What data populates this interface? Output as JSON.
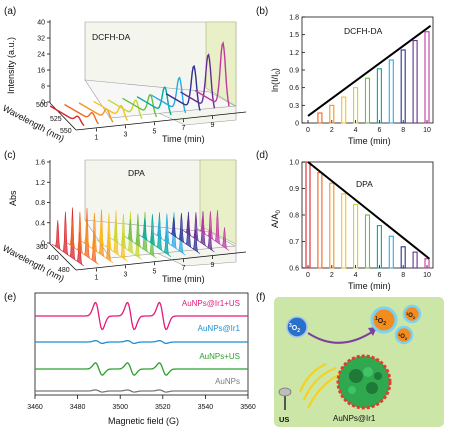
{
  "panel_labels": {
    "a": "(a)",
    "b": "(b)",
    "c": "(c)",
    "d": "(d)",
    "e": "(e)",
    "f": "(f)"
  },
  "colors": {
    "time_series": [
      "#d7262d",
      "#f26522",
      "#f7941d",
      "#f7c21b",
      "#c6d82f",
      "#6abd45",
      "#00a99d",
      "#29abe2",
      "#2e3192",
      "#662d91",
      "#c03aa0"
    ]
  },
  "chart_data": [
    {
      "panel": "a",
      "type": "line",
      "title": "DCFH-DA",
      "ylabel": "Intensity (a.u.)",
      "xlabel": "Time (min)",
      "zlabel": "Wavelength (nm)",
      "ylim": [
        0,
        40
      ],
      "yticks": [
        "0",
        "8",
        "16",
        "24",
        "32",
        "40"
      ],
      "time_ticks": [
        "1",
        "3",
        "5",
        "7",
        "9"
      ],
      "wavelength_ticks": [
        "500",
        "525",
        "550"
      ],
      "series_peak_intensity": [
        3,
        4,
        5,
        6,
        8,
        10,
        13,
        17,
        22,
        27,
        32
      ]
    },
    {
      "panel": "b",
      "type": "bar",
      "title": "DCFH-DA",
      "ylabel": "ln(I/I0)",
      "ylabel_main": "ln(I/I",
      "ylabel_sub": "0",
      "ylabel_end": ")",
      "xlabel": "Time (min)",
      "ylim": [
        0,
        1.8
      ],
      "yticks": [
        "0",
        "0.3",
        "0.6",
        "0.9",
        "1.2",
        "1.5",
        "1.8"
      ],
      "xticks": [
        "0",
        "2",
        "4",
        "6",
        "8",
        "10"
      ],
      "x": [
        0,
        1,
        2,
        3,
        4,
        5,
        6,
        7,
        8,
        9,
        10
      ],
      "values": [
        0.0,
        0.17,
        0.3,
        0.44,
        0.6,
        0.76,
        0.92,
        1.07,
        1.24,
        1.4,
        1.55
      ],
      "fit_line": {
        "x": [
          0,
          10.3
        ],
        "y": [
          0.12,
          1.65
        ]
      }
    },
    {
      "panel": "c",
      "type": "line",
      "title": "DPA",
      "ylabel": "Abs",
      "xlabel": "Time (min)",
      "zlabel": "Wavelength (nm)",
      "ylim": [
        0,
        1.6
      ],
      "yticks": [
        "0",
        "0.4",
        "0.8",
        "1.2",
        "1.6"
      ],
      "time_ticks": [
        "1",
        "3",
        "5",
        "7",
        "9"
      ],
      "wavelength_ticks": [
        "360",
        "400",
        "480"
      ],
      "series_peak_abs": [
        1.0,
        0.96,
        0.9,
        0.85,
        0.8,
        0.76,
        0.72,
        0.69,
        0.67,
        0.65,
        0.64
      ]
    },
    {
      "panel": "d",
      "type": "bar",
      "title": "DPA",
      "ylabel": "A/A0",
      "ylabel_main": "A/A",
      "ylabel_sub": "0",
      "xlabel": "Time (min)",
      "ylim": [
        0.6,
        1.0
      ],
      "yticks": [
        "0.6",
        "0.7",
        "0.8",
        "0.9",
        "1.0"
      ],
      "xticks": [
        "0",
        "2",
        "4",
        "6",
        "8",
        "10"
      ],
      "x": [
        0,
        1,
        2,
        3,
        4,
        5,
        6,
        7,
        8,
        9,
        10
      ],
      "values": [
        1.0,
        0.96,
        0.92,
        0.88,
        0.84,
        0.8,
        0.76,
        0.72,
        0.68,
        0.66,
        0.635
      ],
      "fit_line": {
        "x": [
          0,
          10.2
        ],
        "y": [
          1.0,
          0.635
        ]
      }
    },
    {
      "panel": "e",
      "type": "line",
      "xlabel": "Magnetic field (G)",
      "xlim": [
        3460,
        3560
      ],
      "xticks": [
        "3460",
        "3480",
        "3500",
        "3520",
        "3540",
        "3560"
      ],
      "series": [
        {
          "name": "AuNPs@Ir1+US",
          "color": "#e6197a",
          "amplitude": 1.0
        },
        {
          "name": "AuNPs@Ir1",
          "color": "#1f8fd1",
          "amplitude": 0.1
        },
        {
          "name": "AuNPs+US",
          "color": "#2ca02c",
          "amplitude": 0.45
        },
        {
          "name": "AuNPs",
          "color": "#7a7a7a",
          "amplitude": 0.08
        }
      ],
      "line_centers": [
        3490,
        3505,
        3520
      ]
    }
  ],
  "schematic": {
    "oxygen_label_main": "O",
    "oxygen_label_sub": "2",
    "oxygen_label_sup": "3",
    "singlet_label_main": "O",
    "singlet_label_sub": "2",
    "singlet_label_sup": "1",
    "particle_label": "AuNPs@Ir1",
    "us_label": "US"
  }
}
